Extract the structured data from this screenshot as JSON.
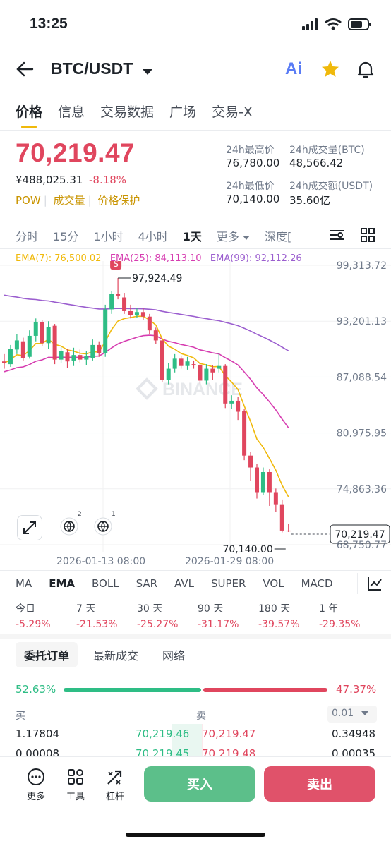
{
  "status": {
    "time": "13:25"
  },
  "header": {
    "pair": "BTC/USDT",
    "ai_label": "Ai"
  },
  "tabs": [
    "价格",
    "信息",
    "交易数据",
    "广场",
    "交易-X"
  ],
  "ticker": {
    "last": "70,219.47",
    "cny": "¥488,025.31",
    "change": "-8.18%",
    "tags": [
      "POW",
      "成交量",
      "价格保护"
    ],
    "high_label": "24h最高价",
    "high": "76,780.00",
    "vol_btc_label": "24h成交量(BTC)",
    "vol_btc": "48,566.42",
    "low_label": "24h最低价",
    "low": "70,140.00",
    "vol_usdt_label": "24h成交额(USDT)",
    "vol_usdt": "35.60亿"
  },
  "timeframes": [
    "分时",
    "15分",
    "1小时",
    "4小时",
    "1天",
    "更多",
    "深度["
  ],
  "ema": {
    "ema7": "EMA(7): 76,500.02",
    "ema25": "EMA(25): 84,113.10",
    "ema99": "EMA(99): 92,112.26"
  },
  "colors": {
    "up": "#2ebd85",
    "down": "#e0465e",
    "ema7": "#f0b90b",
    "ema25": "#d63cb0",
    "ema99": "#9b5ecf",
    "accent": "#f0b90b"
  },
  "chart_data": {
    "type": "candlestick",
    "y_ticks": [
      99313.72,
      93201.13,
      87088.54,
      80975.95,
      74863.36,
      68750.77
    ],
    "y_tick_labels": [
      "99,313.72",
      "93,201.13",
      "87,088.54",
      "80,975.95",
      "74,863.36",
      "68,750.77"
    ],
    "x_tick_labels": [
      "2026-01-13 08:00",
      "2026-01-29 08:00"
    ],
    "high_marker": "97,924.49",
    "low_marker": "70,140.00",
    "last_price_tag": "70,219.47",
    "signal": "S",
    "watermark": "BINANCE",
    "candles": [
      [
        88800,
        88600,
        89600,
        88000
      ],
      [
        88500,
        90200,
        90600,
        88200
      ],
      [
        90100,
        91100,
        91800,
        89600
      ],
      [
        91000,
        89200,
        91400,
        88900
      ],
      [
        89300,
        91600,
        92200,
        89100
      ],
      [
        91600,
        93100,
        93500,
        91000
      ],
      [
        93100,
        90800,
        93300,
        90500
      ],
      [
        90800,
        92600,
        93200,
        90200
      ],
      [
        92700,
        89000,
        92900,
        88500
      ],
      [
        89000,
        89900,
        90400,
        88600
      ],
      [
        89800,
        88800,
        90200,
        88100
      ],
      [
        88900,
        89500,
        90300,
        88300
      ],
      [
        89500,
        89000,
        90100,
        88700
      ],
      [
        89000,
        89400,
        89900,
        88400
      ],
      [
        89200,
        90600,
        91200,
        88900
      ],
      [
        90600,
        89700,
        91000,
        89300
      ],
      [
        89700,
        94500,
        95000,
        89300
      ],
      [
        94500,
        96200,
        96500,
        94000
      ],
      [
        96200,
        96000,
        97924,
        95600
      ],
      [
        95800,
        94300,
        96300,
        94000
      ],
      [
        94300,
        93900,
        95000,
        93500
      ],
      [
        93900,
        94200,
        94600,
        93600
      ],
      [
        94200,
        93700,
        94600,
        93300
      ],
      [
        93700,
        92200,
        94000,
        91800
      ],
      [
        92200,
        91100,
        92500,
        90700
      ],
      [
        91100,
        86800,
        91300,
        86500
      ],
      [
        86800,
        88000,
        88600,
        86300
      ],
      [
        88000,
        89100,
        89600,
        87600
      ],
      [
        89100,
        88300,
        89400,
        88000
      ],
      [
        88300,
        88800,
        89300,
        87900
      ],
      [
        88500,
        88400,
        88900,
        88000
      ],
      [
        88400,
        86700,
        88600,
        86400
      ],
      [
        86700,
        88000,
        88500,
        86300
      ],
      [
        88000,
        87600,
        88400,
        86800
      ],
      [
        88000,
        88300,
        89700,
        87600
      ],
      [
        88300,
        84200,
        88500,
        83700
      ],
      [
        84200,
        84500,
        85100,
        83600
      ],
      [
        84500,
        83300,
        84900,
        82400
      ],
      [
        83400,
        78500,
        83600,
        78000
      ],
      [
        78500,
        77200,
        78900,
        75700
      ],
      [
        77200,
        74500,
        77600,
        73800
      ],
      [
        74500,
        76700,
        77200,
        74200
      ],
      [
        76700,
        74500,
        77000,
        73000
      ],
      [
        74500,
        73100,
        74900,
        72300
      ],
      [
        73100,
        70300,
        73700,
        70100
      ],
      [
        70300,
        70219,
        71000,
        70140
      ]
    ]
  },
  "chart_tools": {
    "badge1": "2",
    "badge2": "1"
  },
  "indicators": [
    "MA",
    "EMA",
    "BOLL",
    "SAR",
    "AVL",
    "SUPER",
    "VOL",
    "MACD"
  ],
  "performance": [
    {
      "label": "今日",
      "value": "-5.29%"
    },
    {
      "label": "7 天",
      "value": "-21.53%"
    },
    {
      "label": "30 天",
      "value": "-25.27%"
    },
    {
      "label": "90 天",
      "value": "-31.17%"
    },
    {
      "label": "180 天",
      "value": "-39.57%"
    },
    {
      "label": "1 年",
      "value": "-29.35%"
    }
  ],
  "orderbook": {
    "tabs": [
      "委托订单",
      "最新成交",
      "网络"
    ],
    "buy_pct": "52.63%",
    "sell_pct": "47.37%",
    "buy_label": "买",
    "sell_label": "卖",
    "precision": "0.01",
    "rows": [
      {
        "bid_qty": "1.17804",
        "bid": "70,219.46",
        "ask": "70,219.47",
        "ask_qty": "0.34948"
      },
      {
        "bid_qty": "0.00008",
        "bid": "70,219.45",
        "ask": "70,219.48",
        "ask_qty": "0.00035"
      }
    ]
  },
  "bottom": {
    "more": "更多",
    "tools": "工具",
    "leverage": "杠杆",
    "buy": "买入",
    "sell": "卖出"
  }
}
